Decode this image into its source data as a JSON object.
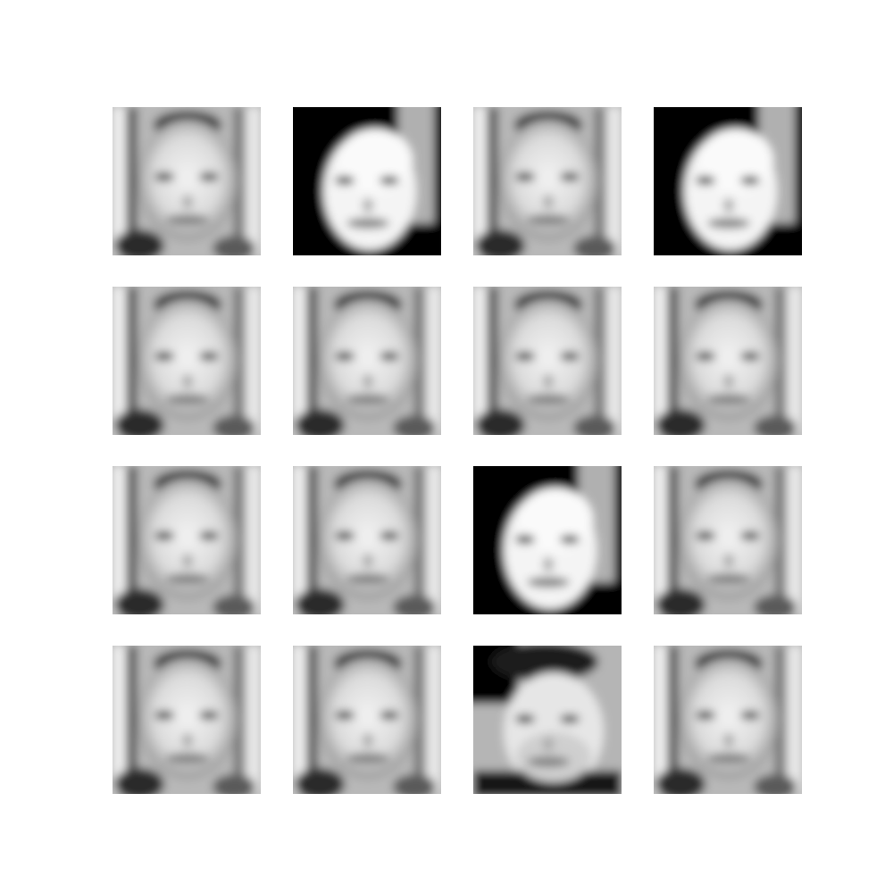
{
  "figure": {
    "rows": 4,
    "columns": 4,
    "background": "#ffffff",
    "tiles": [
      {
        "variant": "plain-face",
        "hair": "light"
      },
      {
        "variant": "dark-background-face",
        "hair": "dark"
      },
      {
        "variant": "plain-face",
        "hair": "light"
      },
      {
        "variant": "dark-background-face",
        "hair": "dark"
      },
      {
        "variant": "plain-face",
        "hair": "dark-top"
      },
      {
        "variant": "plain-face",
        "hair": "dark-top"
      },
      {
        "variant": "plain-face",
        "hair": "dark-top"
      },
      {
        "variant": "plain-face",
        "hair": "dark-top"
      },
      {
        "variant": "plain-face",
        "hair": "dark-top"
      },
      {
        "variant": "plain-face",
        "hair": "dark-top"
      },
      {
        "variant": "dark-background-face",
        "hair": "dark"
      },
      {
        "variant": "plain-face",
        "hair": "dark-top"
      },
      {
        "variant": "plain-face",
        "hair": "dark-top"
      },
      {
        "variant": "plain-face",
        "hair": "dark-top"
      },
      {
        "variant": "dark-hair-face",
        "hair": "dark"
      },
      {
        "variant": "plain-face",
        "hair": "dark-top"
      }
    ]
  }
}
